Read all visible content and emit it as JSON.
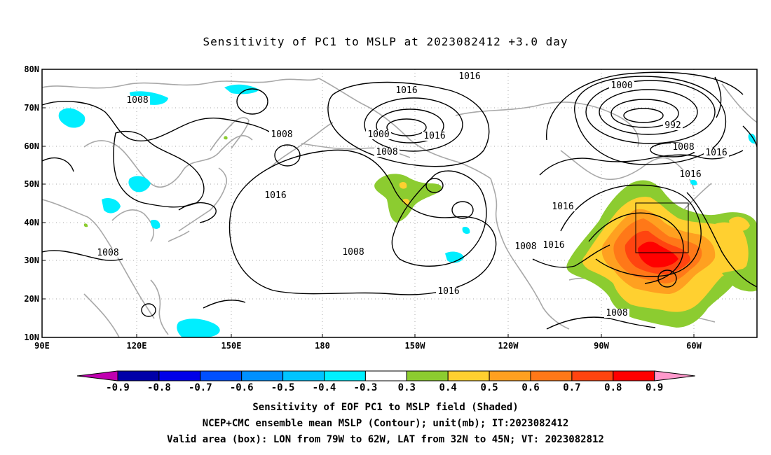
{
  "title": "Sensitivity of PC1 to MSLP at 2023082412 +3.0 day",
  "map": {
    "lon_ticks": [
      "90E",
      "120E",
      "150E",
      "180",
      "150W",
      "120W",
      "90W",
      "60W"
    ],
    "lat_ticks": [
      "80N",
      "70N",
      "60N",
      "50N",
      "40N",
      "30N",
      "20N",
      "10N"
    ],
    "contour_labels": [
      "1016",
      "1008",
      "1016",
      "1008",
      "1000",
      "1008",
      "1016",
      "1000",
      "992",
      "1008",
      "1016",
      "1016",
      "1016",
      "1016",
      "1008",
      "1016",
      "1016",
      "1008",
      "1008"
    ],
    "box_label": ""
  },
  "colorbar": {
    "labels": [
      "-0.9",
      "-0.8",
      "-0.7",
      "-0.6",
      "-0.5",
      "-0.4",
      "-0.3",
      "0.3",
      "0.4",
      "0.5",
      "0.6",
      "0.7",
      "0.8",
      "0.9"
    ],
    "colors": [
      "#c000b0",
      "#0000a8",
      "#0000e8",
      "#0050ff",
      "#0090ff",
      "#00c4ff",
      "#00f0ff",
      "#ffffff",
      "#8ccc30",
      "#ffd030",
      "#ffa020",
      "#ff7818",
      "#ff4410",
      "#ff0000",
      "#ff99cc"
    ]
  },
  "captions": {
    "line1": "Sensitivity of EOF PC1 to MSLP field (Shaded)",
    "line2": "NCEP+CMC ensemble mean MSLP (Contour); unit(mb); IT:2023082412",
    "line3": "Valid area (box): LON from 79W to 62W, LAT from 32N to 45N; VT: 2023082812"
  }
}
